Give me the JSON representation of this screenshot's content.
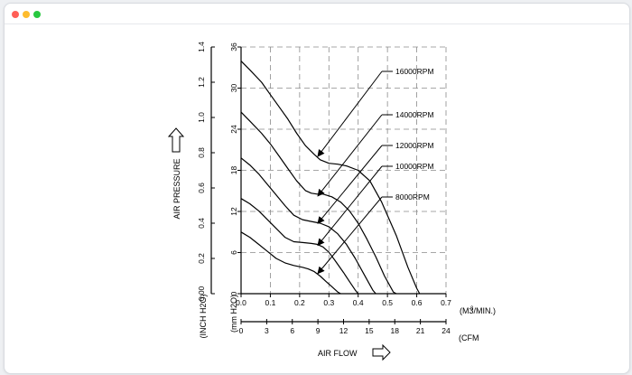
{
  "window": {
    "controls": [
      {
        "name": "close",
        "color": "#ff5f57"
      },
      {
        "name": "minimize",
        "color": "#febc2e"
      },
      {
        "name": "maximize",
        "color": "#28c840"
      }
    ]
  },
  "chart_data": {
    "type": "line",
    "title": "",
    "ylabel": "AIR PRESSURE",
    "xlabel": "AIR FLOW",
    "y_inch_h2o": {
      "unit": "(INCH H2O)",
      "range": [
        0,
        1.4
      ],
      "ticks": [
        "0.00",
        "0.2",
        "0.4",
        "0.6",
        "0.8",
        "1.0",
        "1.2",
        "1.4"
      ]
    },
    "y_mm_h2o": {
      "unit": "(mm H2O)",
      "range": [
        0,
        36
      ],
      "ticks": [
        "0",
        "6",
        "12",
        "18",
        "24",
        "30",
        "36"
      ]
    },
    "x_m3min": {
      "unit": "(M3/MIN.)",
      "range": [
        0,
        0.7
      ],
      "ticks": [
        "0.0",
        "0.1",
        "0.2",
        "0.3",
        "0.4",
        "0.5",
        "0.6",
        "0.7"
      ]
    },
    "x_cfm": {
      "unit": "(CFM",
      "range": [
        0,
        24
      ],
      "ticks": [
        "0",
        "3",
        "6",
        "9",
        "12",
        "15",
        "18",
        "21",
        "24"
      ]
    },
    "grid": true,
    "series": [
      {
        "name": "16000RPM",
        "x": [
          0.0,
          0.03,
          0.07,
          0.1,
          0.13,
          0.16,
          0.19,
          0.22,
          0.25,
          0.27,
          0.3,
          0.33,
          0.36,
          0.4,
          0.44,
          0.48,
          0.53,
          0.57,
          0.6,
          0.61
        ],
        "y": [
          1.32,
          1.27,
          1.2,
          1.13,
          1.06,
          0.99,
          0.91,
          0.84,
          0.79,
          0.76,
          0.74,
          0.735,
          0.725,
          0.7,
          0.64,
          0.52,
          0.33,
          0.15,
          0.03,
          0.0
        ]
      },
      {
        "name": "14000RPM",
        "x": [
          0.0,
          0.03,
          0.07,
          0.1,
          0.13,
          0.16,
          0.19,
          0.22,
          0.24,
          0.26,
          0.28,
          0.31,
          0.34,
          0.37,
          0.4,
          0.43,
          0.46,
          0.49,
          0.52,
          0.53
        ],
        "y": [
          1.03,
          0.98,
          0.91,
          0.85,
          0.78,
          0.71,
          0.64,
          0.585,
          0.57,
          0.565,
          0.565,
          0.55,
          0.52,
          0.47,
          0.4,
          0.31,
          0.21,
          0.1,
          0.01,
          0.0
        ]
      },
      {
        "name": "12000RPM",
        "x": [
          0.0,
          0.03,
          0.06,
          0.09,
          0.12,
          0.15,
          0.18,
          0.21,
          0.24,
          0.27,
          0.3,
          0.33,
          0.36,
          0.39,
          0.42,
          0.45,
          0.46
        ],
        "y": [
          0.77,
          0.73,
          0.68,
          0.62,
          0.56,
          0.5,
          0.445,
          0.42,
          0.41,
          0.4,
          0.38,
          0.34,
          0.28,
          0.2,
          0.11,
          0.02,
          0.0
        ]
      },
      {
        "name": "10000RPM",
        "x": [
          0.0,
          0.03,
          0.06,
          0.09,
          0.12,
          0.15,
          0.18,
          0.21,
          0.24,
          0.26,
          0.28,
          0.3,
          0.32,
          0.35,
          0.37,
          0.39,
          0.4
        ],
        "y": [
          0.54,
          0.51,
          0.47,
          0.42,
          0.37,
          0.32,
          0.295,
          0.29,
          0.285,
          0.28,
          0.265,
          0.235,
          0.19,
          0.12,
          0.07,
          0.02,
          0.0
        ]
      },
      {
        "name": "8000RPM",
        "x": [
          0.0,
          0.03,
          0.06,
          0.09,
          0.12,
          0.15,
          0.18,
          0.21,
          0.23,
          0.25,
          0.27,
          0.29,
          0.31,
          0.33,
          0.34
        ],
        "y": [
          0.35,
          0.32,
          0.28,
          0.24,
          0.2,
          0.175,
          0.16,
          0.15,
          0.14,
          0.125,
          0.1,
          0.07,
          0.04,
          0.01,
          0.0
        ]
      }
    ],
    "annotations": [
      {
        "series": "16000RPM",
        "label": "16000RPM",
        "arrow_to": [
          0.25,
          0.79
        ]
      },
      {
        "series": "14000RPM",
        "label": "14000RPM",
        "arrow_to": [
          0.25,
          0.565
        ]
      },
      {
        "series": "12000RPM",
        "label": "12000RPM",
        "arrow_to": [
          0.25,
          0.41
        ]
      },
      {
        "series": "10000RPM",
        "label": "10000RPM",
        "arrow_to": [
          0.25,
          0.285
        ]
      },
      {
        "series": "8000RPM",
        "label": "8000RPM",
        "arrow_to": [
          0.25,
          0.125
        ]
      }
    ]
  }
}
